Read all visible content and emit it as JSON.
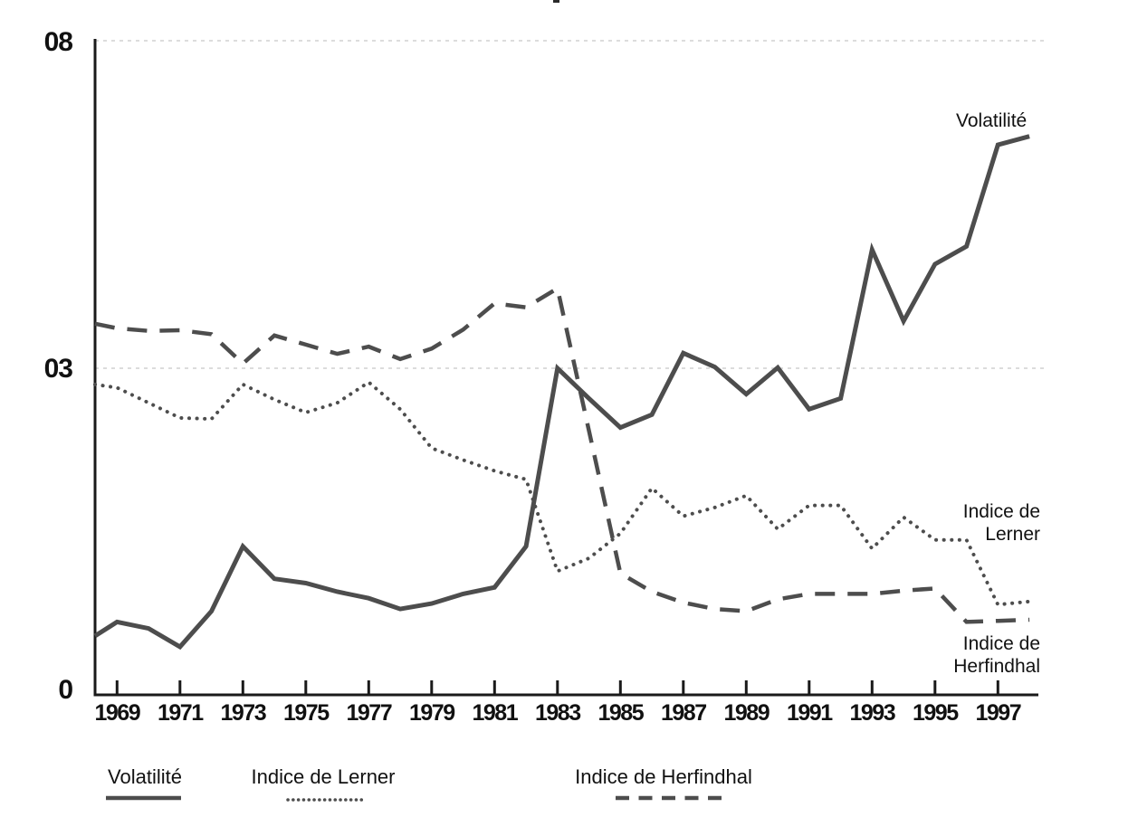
{
  "colors": {
    "line": "#4d4d4d",
    "axis": "#1a1a1a",
    "grid": "#d0d0d0",
    "text": "#111111",
    "background": "#ffffff"
  },
  "y_axis": {
    "tick_labels": [
      "0",
      "03",
      "08"
    ],
    "tick_values": [
      0,
      0.3,
      0.8
    ]
  },
  "chart_data": {
    "type": "line",
    "title": "",
    "xlabel": "",
    "ylabel": "",
    "ylim": [
      0,
      0.8
    ],
    "y_gridlines": [
      0.3,
      0.8
    ],
    "y_tick_labels_as_printed": [
      "0",
      "03",
      "08"
    ],
    "grid": "horizontal-dotted",
    "legend_position": "bottom",
    "x": [
      1968,
      1969,
      1970,
      1971,
      1972,
      1973,
      1974,
      1975,
      1976,
      1977,
      1978,
      1979,
      1980,
      1981,
      1982,
      1983,
      1984,
      1985,
      1986,
      1987,
      1988,
      1989,
      1990,
      1991,
      1992,
      1993,
      1994,
      1995,
      1996,
      1997,
      1998
    ],
    "x_tick_years": [
      1969,
      1971,
      1973,
      1975,
      1977,
      1979,
      1981,
      1983,
      1985,
      1987,
      1989,
      1991,
      1993,
      1995,
      1997
    ],
    "x_tick_labels": [
      "1969",
      "1971",
      "1973",
      "1975",
      "1977",
      "1979",
      "1981",
      "1983",
      "1985",
      "1987",
      "1989",
      "1991",
      "1993",
      "1995",
      "1997"
    ],
    "series": [
      {
        "name": "Volatilité",
        "style": "solid",
        "values": [
          0.052,
          0.065,
          0.059,
          0.042,
          0.075,
          0.135,
          0.105,
          0.101,
          0.093,
          0.087,
          0.077,
          0.082,
          0.091,
          0.097,
          0.135,
          0.3,
          0.272,
          0.245,
          0.257,
          0.323,
          0.302,
          0.276,
          0.301,
          0.262,
          0.272,
          0.481,
          0.372,
          0.459,
          0.486,
          0.641,
          0.654
        ]
      },
      {
        "name": "Indice de Lerner",
        "style": "dotted",
        "values": [
          0.285,
          0.282,
          0.268,
          0.254,
          0.253,
          0.285,
          0.271,
          0.259,
          0.268,
          0.287,
          0.262,
          0.226,
          0.215,
          0.205,
          0.197,
          0.112,
          0.124,
          0.147,
          0.189,
          0.163,
          0.171,
          0.182,
          0.151,
          0.173,
          0.173,
          0.133,
          0.162,
          0.141,
          0.141,
          0.081,
          0.084
        ]
      },
      {
        "name": "Indice de Herfindhal",
        "style": "dashed",
        "values": [
          0.368,
          0.361,
          0.357,
          0.358,
          0.352,
          0.307,
          0.35,
          0.336,
          0.322,
          0.333,
          0.314,
          0.33,
          0.359,
          0.399,
          0.393,
          0.422,
          0.242,
          0.11,
          0.093,
          0.083,
          0.077,
          0.075,
          0.086,
          0.091,
          0.091,
          0.091,
          0.094,
          0.096,
          0.065,
          0.066,
          0.067
        ]
      }
    ],
    "annotations": {
      "volatilite": "Volatilité",
      "lerner": [
        "Indice de",
        "Lerner"
      ],
      "herfindhal": [
        "Indice de",
        "Herfindhal"
      ]
    }
  },
  "legend": {
    "items": [
      {
        "label": "Volatilité",
        "style": "solid"
      },
      {
        "label": "Indice de Lerner",
        "style": "dotted"
      },
      {
        "label": "Indice de Herfindhal",
        "style": "dashed"
      }
    ]
  }
}
